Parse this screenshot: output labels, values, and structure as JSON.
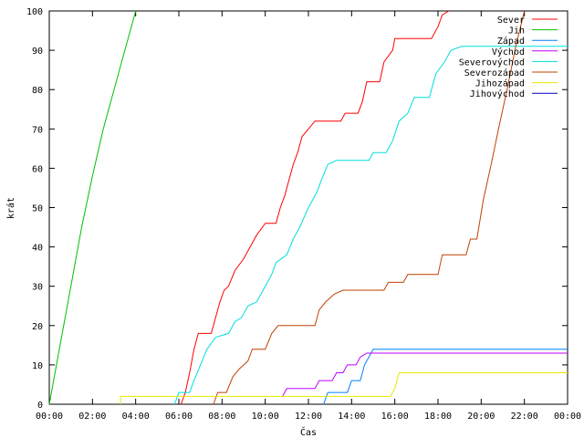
{
  "chart_data": {
    "type": "line",
    "title": "",
    "xlabel": "Čas",
    "ylabel": "krát",
    "x_unit": "time of day (hours)",
    "xlim": [
      0,
      24
    ],
    "ylim": [
      0,
      100
    ],
    "grid": false,
    "legend_position": "top-right",
    "x_tick_labels": [
      "00:00",
      "02:00",
      "04:00",
      "06:00",
      "08:00",
      "10:00",
      "12:00",
      "14:00",
      "16:00",
      "18:00",
      "20:00",
      "22:00",
      "00:00"
    ],
    "y_tick_labels": [
      "0",
      "10",
      "20",
      "30",
      "40",
      "50",
      "60",
      "70",
      "80",
      "90",
      "100"
    ],
    "series": [
      {
        "name": "Sever",
        "color": "#ff0000",
        "points": [
          [
            6.1,
            0
          ],
          [
            6.3,
            3
          ],
          [
            6.5,
            8
          ],
          [
            6.7,
            14
          ],
          [
            6.9,
            18
          ],
          [
            7.5,
            18
          ],
          [
            7.7,
            22
          ],
          [
            7.9,
            26
          ],
          [
            8.1,
            29
          ],
          [
            8.3,
            30
          ],
          [
            8.6,
            34
          ],
          [
            9.0,
            37
          ],
          [
            9.3,
            40
          ],
          [
            9.6,
            43
          ],
          [
            10.0,
            46
          ],
          [
            10.5,
            46
          ],
          [
            10.7,
            50
          ],
          [
            10.9,
            53
          ],
          [
            11.1,
            57
          ],
          [
            11.3,
            61
          ],
          [
            11.5,
            64
          ],
          [
            11.7,
            68
          ],
          [
            12.0,
            70
          ],
          [
            12.3,
            72
          ],
          [
            13.5,
            72
          ],
          [
            13.7,
            74
          ],
          [
            14.3,
            74
          ],
          [
            14.5,
            77
          ],
          [
            14.7,
            82
          ],
          [
            15.3,
            82
          ],
          [
            15.5,
            87
          ],
          [
            15.9,
            90
          ],
          [
            16.0,
            93
          ],
          [
            17.7,
            93
          ],
          [
            18.0,
            96
          ],
          [
            18.2,
            99
          ],
          [
            18.5,
            100
          ]
        ]
      },
      {
        "name": "Jih",
        "color": "#00c000",
        "points": [
          [
            0.0,
            0
          ],
          [
            0.5,
            15
          ],
          [
            1.0,
            30
          ],
          [
            1.5,
            45
          ],
          [
            2.0,
            58
          ],
          [
            2.5,
            70
          ],
          [
            3.0,
            80
          ],
          [
            3.3,
            86
          ],
          [
            3.7,
            94
          ],
          [
            4.0,
            100
          ]
        ]
      },
      {
        "name": "Západ",
        "color": "#0080ff",
        "points": [
          [
            12.7,
            0
          ],
          [
            12.9,
            3
          ],
          [
            13.8,
            3
          ],
          [
            14.0,
            6
          ],
          [
            14.4,
            6
          ],
          [
            14.6,
            10
          ],
          [
            14.9,
            13
          ],
          [
            15.0,
            14
          ],
          [
            24.0,
            14
          ]
        ]
      },
      {
        "name": "Východ",
        "color": "#c000ff",
        "points": [
          [
            10.8,
            2
          ],
          [
            11.0,
            4
          ],
          [
            12.3,
            4
          ],
          [
            12.5,
            6
          ],
          [
            13.1,
            6
          ],
          [
            13.3,
            8
          ],
          [
            13.6,
            8
          ],
          [
            13.8,
            10
          ],
          [
            14.2,
            10
          ],
          [
            14.4,
            12
          ],
          [
            14.7,
            13
          ],
          [
            24.0,
            13
          ]
        ]
      },
      {
        "name": "Severovýchod",
        "color": "#00dddd",
        "points": [
          [
            5.8,
            0
          ],
          [
            6.0,
            3
          ],
          [
            6.5,
            3
          ],
          [
            6.7,
            6
          ],
          [
            7.0,
            10
          ],
          [
            7.3,
            14
          ],
          [
            7.7,
            17
          ],
          [
            8.3,
            18
          ],
          [
            8.6,
            21
          ],
          [
            8.9,
            22
          ],
          [
            9.2,
            25
          ],
          [
            9.6,
            26
          ],
          [
            9.9,
            29
          ],
          [
            10.3,
            33
          ],
          [
            10.5,
            36
          ],
          [
            11.0,
            38
          ],
          [
            11.3,
            42
          ],
          [
            11.6,
            45
          ],
          [
            12.0,
            50
          ],
          [
            12.4,
            54
          ],
          [
            12.6,
            57
          ],
          [
            12.9,
            61
          ],
          [
            13.3,
            62
          ],
          [
            14.8,
            62
          ],
          [
            15.0,
            64
          ],
          [
            15.6,
            64
          ],
          [
            15.9,
            67
          ],
          [
            16.2,
            72
          ],
          [
            16.6,
            74
          ],
          [
            16.9,
            78
          ],
          [
            17.6,
            78
          ],
          [
            17.9,
            84
          ],
          [
            18.3,
            87
          ],
          [
            18.6,
            90
          ],
          [
            19.1,
            91
          ],
          [
            24.0,
            91
          ]
        ]
      },
      {
        "name": "Severozápad",
        "color": "#c04000",
        "points": [
          [
            7.6,
            0
          ],
          [
            7.8,
            3
          ],
          [
            8.2,
            3
          ],
          [
            8.5,
            7
          ],
          [
            8.8,
            9
          ],
          [
            9.2,
            11
          ],
          [
            9.4,
            14
          ],
          [
            10.0,
            14
          ],
          [
            10.3,
            18
          ],
          [
            10.6,
            20
          ],
          [
            12.3,
            20
          ],
          [
            12.5,
            24
          ],
          [
            12.8,
            26
          ],
          [
            13.2,
            28
          ],
          [
            13.6,
            29
          ],
          [
            15.5,
            29
          ],
          [
            15.7,
            31
          ],
          [
            16.4,
            31
          ],
          [
            16.6,
            33
          ],
          [
            18.0,
            33
          ],
          [
            18.2,
            38
          ],
          [
            19.3,
            38
          ],
          [
            19.5,
            42
          ],
          [
            19.8,
            42
          ],
          [
            20.1,
            52
          ],
          [
            20.5,
            62
          ],
          [
            20.8,
            70
          ],
          [
            21.2,
            80
          ],
          [
            21.6,
            91
          ],
          [
            22.0,
            100
          ]
        ]
      },
      {
        "name": "Jihozápad",
        "color": "#e8e800",
        "points": [
          [
            3.3,
            0
          ],
          [
            3.3,
            2
          ],
          [
            15.8,
            2
          ],
          [
            16.0,
            4
          ],
          [
            16.2,
            8
          ],
          [
            24.0,
            8
          ]
        ]
      },
      {
        "name": "Jihovýchod",
        "color": "#0000c0",
        "points": []
      }
    ]
  }
}
